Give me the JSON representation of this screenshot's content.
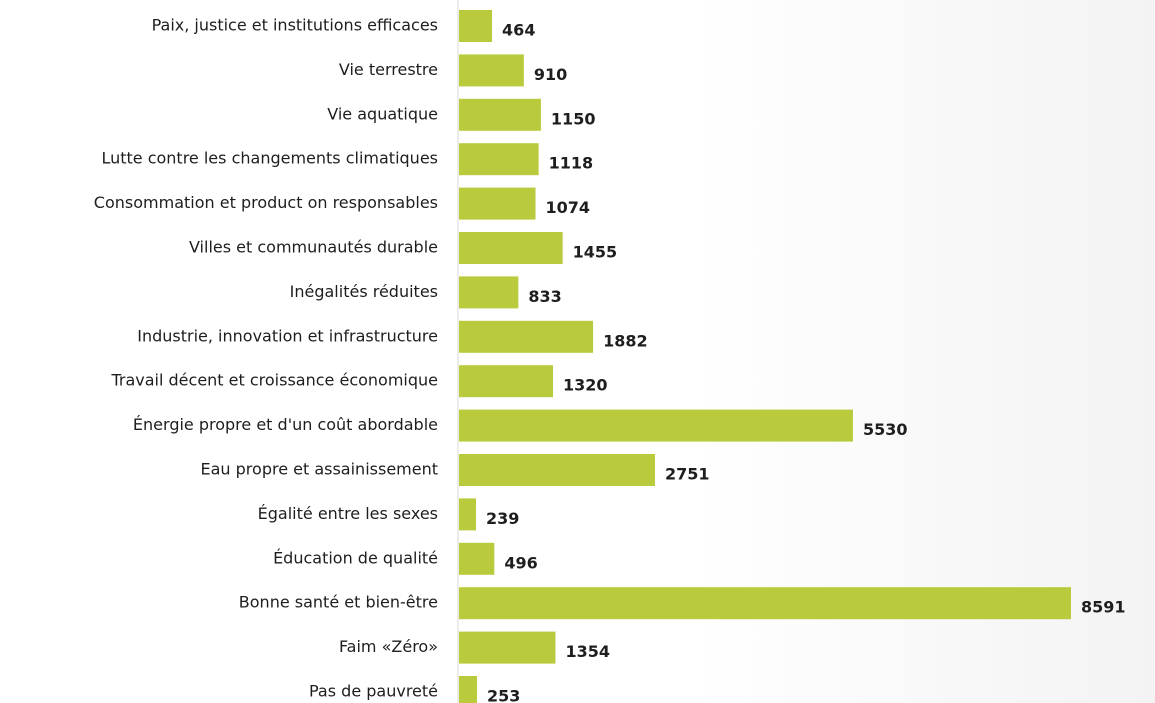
{
  "chart_data": {
    "type": "bar",
    "orientation": "horizontal",
    "color": "#b9cb3d",
    "categories": [
      "Paix, justice et institutions efficaces",
      "Vie terrestre",
      "Vie aquatique",
      "Lutte contre les changements climatiques",
      "Consommation et product on responsables",
      "Villes et communautés durable",
      "Inégalités réduites",
      "Industrie, innovation et infrastructure",
      "Travail décent et croissance économique",
      "Énergie propre et d'un coût abordable",
      "Eau propre et assainissement",
      "Égalité entre les sexes",
      "Éducation de qualité",
      "Bonne santé et bien-être",
      "Faim «Zéro»",
      "Pas de pauvreté"
    ],
    "values": [
      464,
      910,
      1150,
      1118,
      1074,
      1455,
      833,
      1882,
      1320,
      5530,
      2751,
      239,
      496,
      8591,
      1354,
      253
    ]
  }
}
